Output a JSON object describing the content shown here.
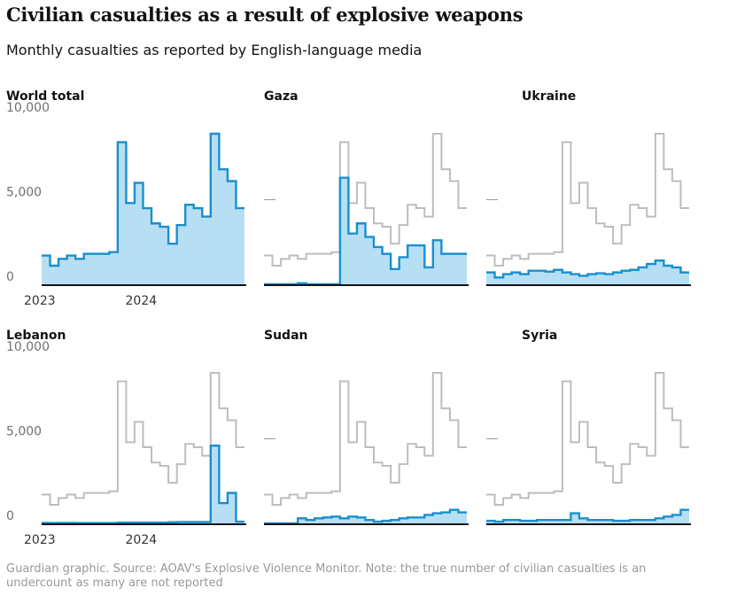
{
  "title": "Civilian casualties as a result of explosive weapons",
  "subtitle": "Monthly casualties as reported by English-language media",
  "source": "Guardian graphic. Source: AOAV's Explosive Violence Monitor. Note: the true number of civilian casualties is an undercount as many are not reported",
  "colors": {
    "series": "#1a8fce",
    "fill": "#b7dff3",
    "reference": "#bdbdbd",
    "axis": "#121212",
    "text": "#707070"
  },
  "chart_data": {
    "type": "area",
    "step": true,
    "months": [
      "2023-01",
      "2023-02",
      "2023-03",
      "2023-04",
      "2023-05",
      "2023-06",
      "2023-07",
      "2023-08",
      "2023-09",
      "2023-10",
      "2023-11",
      "2023-12",
      "2024-01",
      "2024-02",
      "2024-03",
      "2024-04",
      "2024-05",
      "2024-06",
      "2024-07",
      "2024-08",
      "2024-09",
      "2024-10",
      "2024-11",
      "2024-12"
    ],
    "x_tick_labels": [
      "2023",
      "2024"
    ],
    "x_ticks": [
      "2023-01",
      "2024-01"
    ],
    "y_ticks": [
      0,
      5000,
      10000
    ],
    "y_tick_labels": [
      "0",
      "5,000",
      "10,000"
    ],
    "ylim": [
      0,
      10000
    ],
    "reference_series": "World total",
    "panels": [
      {
        "name": "World total",
        "values": [
          1700,
          1100,
          1500,
          1700,
          1500,
          1800,
          1800,
          1800,
          1900,
          8400,
          4800,
          6000,
          4500,
          3600,
          3400,
          2400,
          3500,
          4700,
          4500,
          4000,
          8900,
          6800,
          6100,
          4500
        ]
      },
      {
        "name": "Gaza",
        "values": [
          0,
          0,
          0,
          0,
          60,
          0,
          0,
          0,
          0,
          6300,
          3000,
          3600,
          2800,
          2200,
          1800,
          900,
          1600,
          2300,
          2300,
          1000,
          2600,
          1800,
          1800,
          1800
        ]
      },
      {
        "name": "Ukraine",
        "values": [
          700,
          400,
          600,
          700,
          600,
          800,
          800,
          750,
          850,
          700,
          600,
          500,
          600,
          650,
          600,
          700,
          800,
          850,
          1000,
          1200,
          1400,
          1100,
          1000,
          700
        ]
      },
      {
        "name": "Lebanon",
        "values": [
          30,
          20,
          30,
          30,
          20,
          20,
          20,
          20,
          20,
          50,
          50,
          50,
          50,
          50,
          50,
          70,
          80,
          80,
          80,
          80,
          4600,
          1200,
          1800,
          100
        ]
      },
      {
        "name": "Sudan",
        "values": [
          0,
          0,
          0,
          0,
          300,
          200,
          300,
          350,
          400,
          300,
          400,
          350,
          200,
          100,
          150,
          200,
          300,
          350,
          350,
          500,
          600,
          650,
          800,
          650
        ]
      },
      {
        "name": "Syria",
        "values": [
          150,
          100,
          200,
          200,
          150,
          150,
          200,
          200,
          200,
          200,
          600,
          300,
          200,
          200,
          200,
          150,
          150,
          200,
          200,
          200,
          300,
          400,
          500,
          800
        ]
      }
    ]
  }
}
